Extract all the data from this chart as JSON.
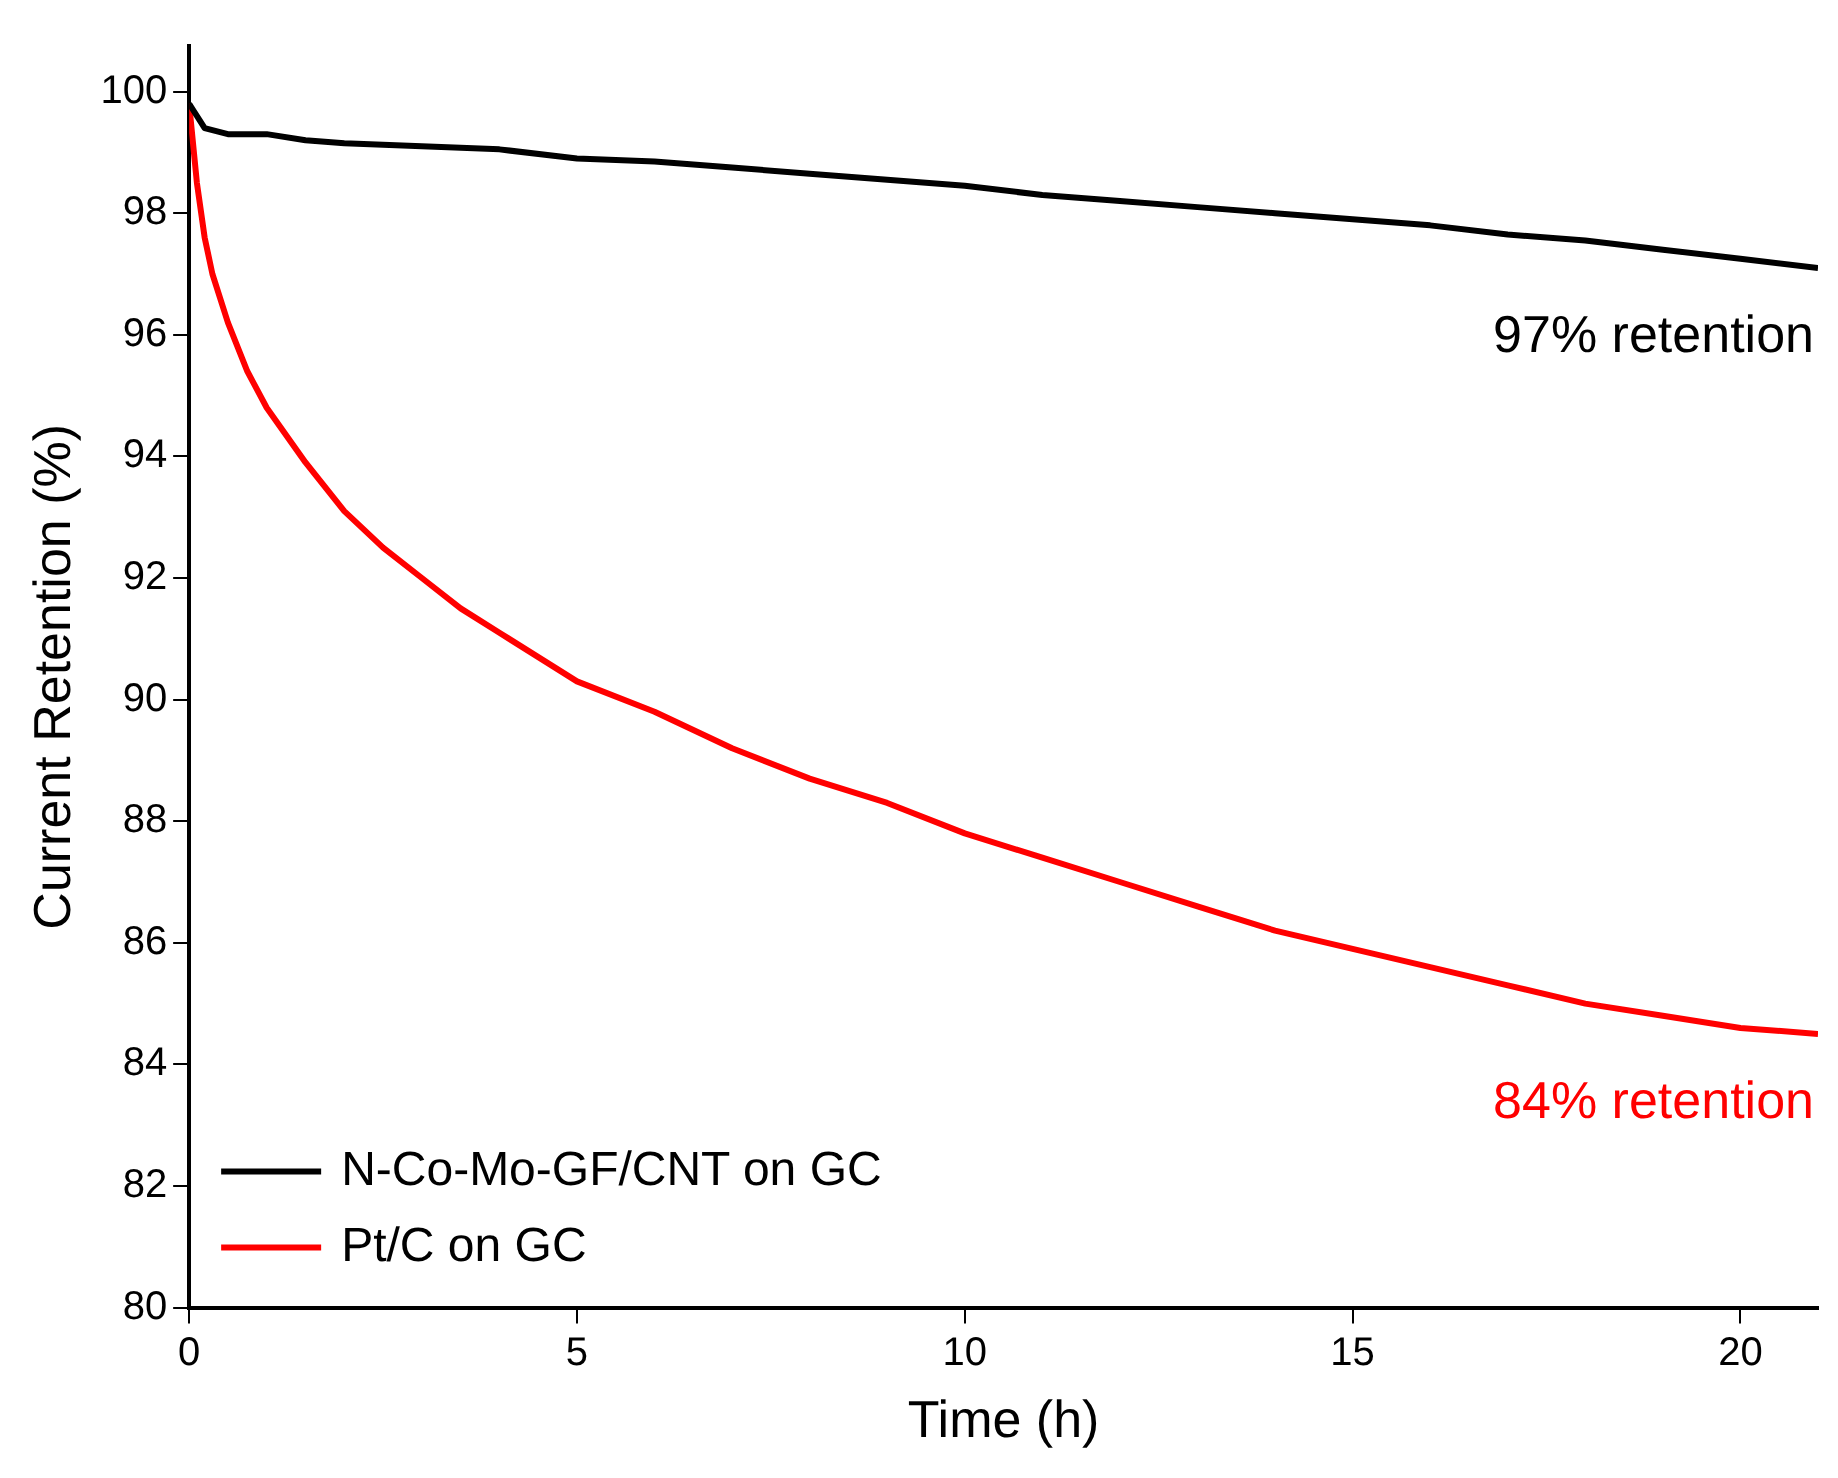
{
  "chart_data": {
    "type": "line",
    "xlabel": "Time (h)",
    "ylabel": "Current Retention (%)",
    "xlim": [
      0,
      21
    ],
    "xticks": [
      0,
      5,
      10,
      15,
      20
    ],
    "ylim": [
      80,
      100.75
    ],
    "yticks": [
      80,
      82,
      84,
      86,
      88,
      90,
      92,
      94,
      96,
      98,
      100
    ],
    "grid": false,
    "legend": "bottom left",
    "marker": "none",
    "line_style": "solid",
    "series": [
      {
        "name": "N-Co-Mo-GF/CNT on GC",
        "color": "#000000",
        "x": [
          0,
          0.2,
          0.5,
          1,
          1.5,
          2,
          3,
          4,
          5,
          6,
          7,
          8,
          9,
          10,
          11,
          12,
          13,
          14,
          15,
          16,
          17,
          18,
          19,
          20,
          21
        ],
        "values": [
          99.8,
          99.4,
          99.3,
          99.3,
          99.2,
          99.15,
          99.1,
          99.05,
          98.9,
          98.85,
          98.75,
          98.65,
          98.55,
          98.45,
          98.3,
          98.2,
          98.1,
          98.0,
          97.9,
          97.8,
          97.65,
          97.55,
          97.4,
          97.25,
          97.1
        ]
      },
      {
        "name": "Pt/C on GC",
        "color": "#ff0000",
        "x": [
          0,
          0.1,
          0.2,
          0.3,
          0.5,
          0.75,
          1,
          1.5,
          2,
          2.5,
          3,
          3.5,
          4,
          5,
          6,
          7,
          8,
          9,
          10,
          11,
          12,
          13,
          14,
          15,
          16,
          17,
          18,
          19,
          20,
          21
        ],
        "values": [
          99.8,
          98.5,
          97.6,
          97.0,
          96.2,
          95.4,
          94.8,
          93.9,
          93.1,
          92.5,
          92.0,
          91.5,
          91.1,
          90.3,
          89.8,
          89.2,
          88.7,
          88.3,
          87.8,
          87.4,
          87.0,
          86.6,
          86.2,
          85.9,
          85.6,
          85.3,
          85.0,
          84.8,
          84.6,
          84.5
        ]
      }
    ],
    "annotations": [
      "97% retention",
      "84% retention"
    ]
  }
}
